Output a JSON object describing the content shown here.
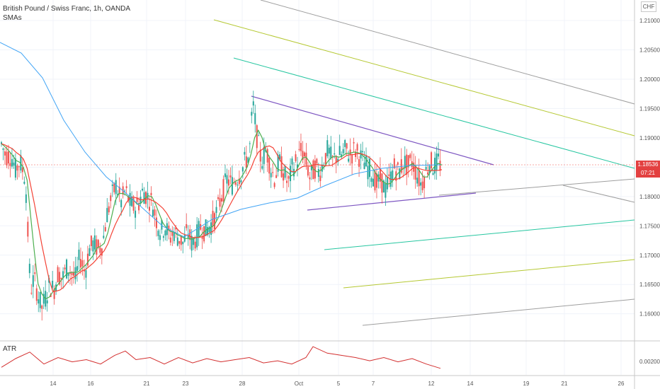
{
  "legend": {
    "title": "British Pound / Swiss Franc, 1h, OANDA",
    "indicator": "SMAs"
  },
  "atr_label": "ATR",
  "currency": "CHF",
  "last_price": "1.18536",
  "countdown": "07:21",
  "colors": {
    "up": "#26a69a",
    "down": "#ef5350",
    "sma_fast": "#4caf50",
    "sma_mid": "#f44336",
    "sma_slow": "#42a5f5",
    "triangle": "#7e57c2",
    "gray_channel": "#9e9e9e",
    "yellow_channel": "#b5c832",
    "green_channel": "#26c6a0",
    "atr": "#d32f2f"
  },
  "chart_data": {
    "type": "candlestick",
    "title": "British Pound / Swiss Franc, 1h, OANDA",
    "x_ticks": [
      "14",
      "16",
      "21",
      "23",
      "28",
      "Oct",
      "5",
      "7",
      "12",
      "14",
      "19",
      "21",
      "26"
    ],
    "y_ticks": [
      "1.21000",
      "1.20500",
      "1.20000",
      "1.19500",
      "1.19000",
      "1.18500",
      "1.18000",
      "1.17500",
      "1.17000",
      "1.16500",
      "1.16000"
    ],
    "ylim": [
      1.1555,
      1.2135
    ],
    "atr_ticks": [
      "0.00200"
    ],
    "price_path": [
      [
        0,
        1.189
      ],
      [
        0.006,
        1.187
      ],
      [
        0.014,
        1.187
      ],
      [
        0.02,
        1.1845
      ],
      [
        0.026,
        1.186
      ],
      [
        0.034,
        1.183
      ],
      [
        0.038,
        1.172
      ],
      [
        0.041,
        1.164
      ],
      [
        0.046,
        1.166
      ],
      [
        0.052,
        1.163
      ],
      [
        0.057,
        1.161
      ],
      [
        0.063,
        1.163
      ],
      [
        0.068,
        1.165
      ],
      [
        0.074,
        1.164
      ],
      [
        0.08,
        1.167
      ],
      [
        0.086,
        1.166
      ],
      [
        0.093,
        1.168
      ],
      [
        0.099,
        1.167
      ],
      [
        0.105,
        1.166
      ],
      [
        0.111,
        1.17
      ],
      [
        0.118,
        1.167
      ],
      [
        0.124,
        1.171
      ],
      [
        0.13,
        1.172
      ],
      [
        0.137,
        1.171
      ],
      [
        0.143,
        1.172
      ],
      [
        0.149,
        1.177
      ],
      [
        0.156,
        1.18
      ],
      [
        0.162,
        1.182
      ],
      [
        0.169,
        1.179
      ],
      [
        0.175,
        1.181
      ],
      [
        0.181,
        1.179
      ],
      [
        0.188,
        1.178
      ],
      [
        0.194,
        1.179
      ],
      [
        0.2,
        1.181
      ],
      [
        0.206,
        1.18
      ],
      [
        0.213,
        1.179
      ],
      [
        0.219,
        1.176
      ],
      [
        0.225,
        1.174
      ],
      [
        0.231,
        1.175
      ],
      [
        0.238,
        1.173
      ],
      [
        0.244,
        1.174
      ],
      [
        0.25,
        1.173
      ],
      [
        0.257,
        1.172
      ],
      [
        0.263,
        1.174
      ],
      [
        0.269,
        1.172
      ],
      [
        0.275,
        1.173
      ],
      [
        0.282,
        1.175
      ],
      [
        0.288,
        1.174
      ],
      [
        0.294,
        1.175
      ],
      [
        0.3,
        1.176
      ],
      [
        0.306,
        1.178
      ],
      [
        0.313,
        1.181
      ],
      [
        0.319,
        1.183
      ],
      [
        0.325,
        1.182
      ],
      [
        0.331,
        1.183
      ],
      [
        0.338,
        1.184
      ],
      [
        0.344,
        1.186
      ],
      [
        0.35,
        1.187
      ],
      [
        0.355,
        1.196
      ],
      [
        0.361,
        1.19
      ],
      [
        0.367,
        1.186
      ],
      [
        0.374,
        1.188
      ],
      [
        0.38,
        1.185
      ],
      [
        0.386,
        1.183
      ],
      [
        0.392,
        1.186
      ],
      [
        0.399,
        1.184
      ],
      [
        0.405,
        1.182
      ],
      [
        0.411,
        1.185
      ],
      [
        0.417,
        1.186
      ],
      [
        0.424,
        1.188
      ],
      [
        0.43,
        1.186
      ],
      [
        0.436,
        1.183
      ],
      [
        0.443,
        1.185
      ],
      [
        0.449,
        1.184
      ],
      [
        0.455,
        1.186
      ],
      [
        0.461,
        1.188
      ],
      [
        0.467,
        1.186
      ],
      [
        0.474,
        1.187
      ],
      [
        0.48,
        1.187
      ],
      [
        0.486,
        1.188
      ],
      [
        0.493,
        1.187
      ],
      [
        0.499,
        1.188
      ],
      [
        0.505,
        1.187
      ],
      [
        0.511,
        1.186
      ],
      [
        0.517,
        1.185
      ],
      [
        0.524,
        1.184
      ],
      [
        0.53,
        1.182
      ],
      [
        0.536,
        1.183
      ],
      [
        0.542,
        1.181
      ],
      [
        0.549,
        1.183
      ],
      [
        0.555,
        1.185
      ],
      [
        0.561,
        1.184
      ],
      [
        0.568,
        1.186
      ],
      [
        0.574,
        1.185
      ],
      [
        0.58,
        1.186
      ],
      [
        0.586,
        1.184
      ],
      [
        0.593,
        1.182
      ],
      [
        0.599,
        1.184
      ],
      [
        0.605,
        1.186
      ],
      [
        0.611,
        1.185
      ],
      [
        0.617,
        1.186
      ],
      [
        0.622,
        1.185
      ]
    ],
    "atr_path": [
      [
        0,
        1.7
      ],
      [
        0.02,
        2.5
      ],
      [
        0.04,
        3.1
      ],
      [
        0.06,
        2.0
      ],
      [
        0.08,
        2.6
      ],
      [
        0.1,
        2.2
      ],
      [
        0.12,
        2.4
      ],
      [
        0.14,
        2.0
      ],
      [
        0.16,
        2.8
      ],
      [
        0.175,
        3.2
      ],
      [
        0.19,
        2.4
      ],
      [
        0.21,
        2.6
      ],
      [
        0.23,
        2.0
      ],
      [
        0.25,
        2.6
      ],
      [
        0.27,
        2.1
      ],
      [
        0.29,
        2.5
      ],
      [
        0.31,
        2.2
      ],
      [
        0.33,
        2.4
      ],
      [
        0.35,
        2.6
      ],
      [
        0.37,
        2.1
      ],
      [
        0.39,
        2.3
      ],
      [
        0.41,
        2.0
      ],
      [
        0.43,
        2.6
      ],
      [
        0.44,
        3.6
      ],
      [
        0.46,
        3.0
      ],
      [
        0.48,
        2.8
      ],
      [
        0.5,
        2.6
      ],
      [
        0.52,
        2.3
      ],
      [
        0.54,
        2.6
      ],
      [
        0.56,
        2.2
      ],
      [
        0.58,
        2.5
      ],
      [
        0.6,
        2.0
      ],
      [
        0.62,
        1.6
      ]
    ]
  }
}
